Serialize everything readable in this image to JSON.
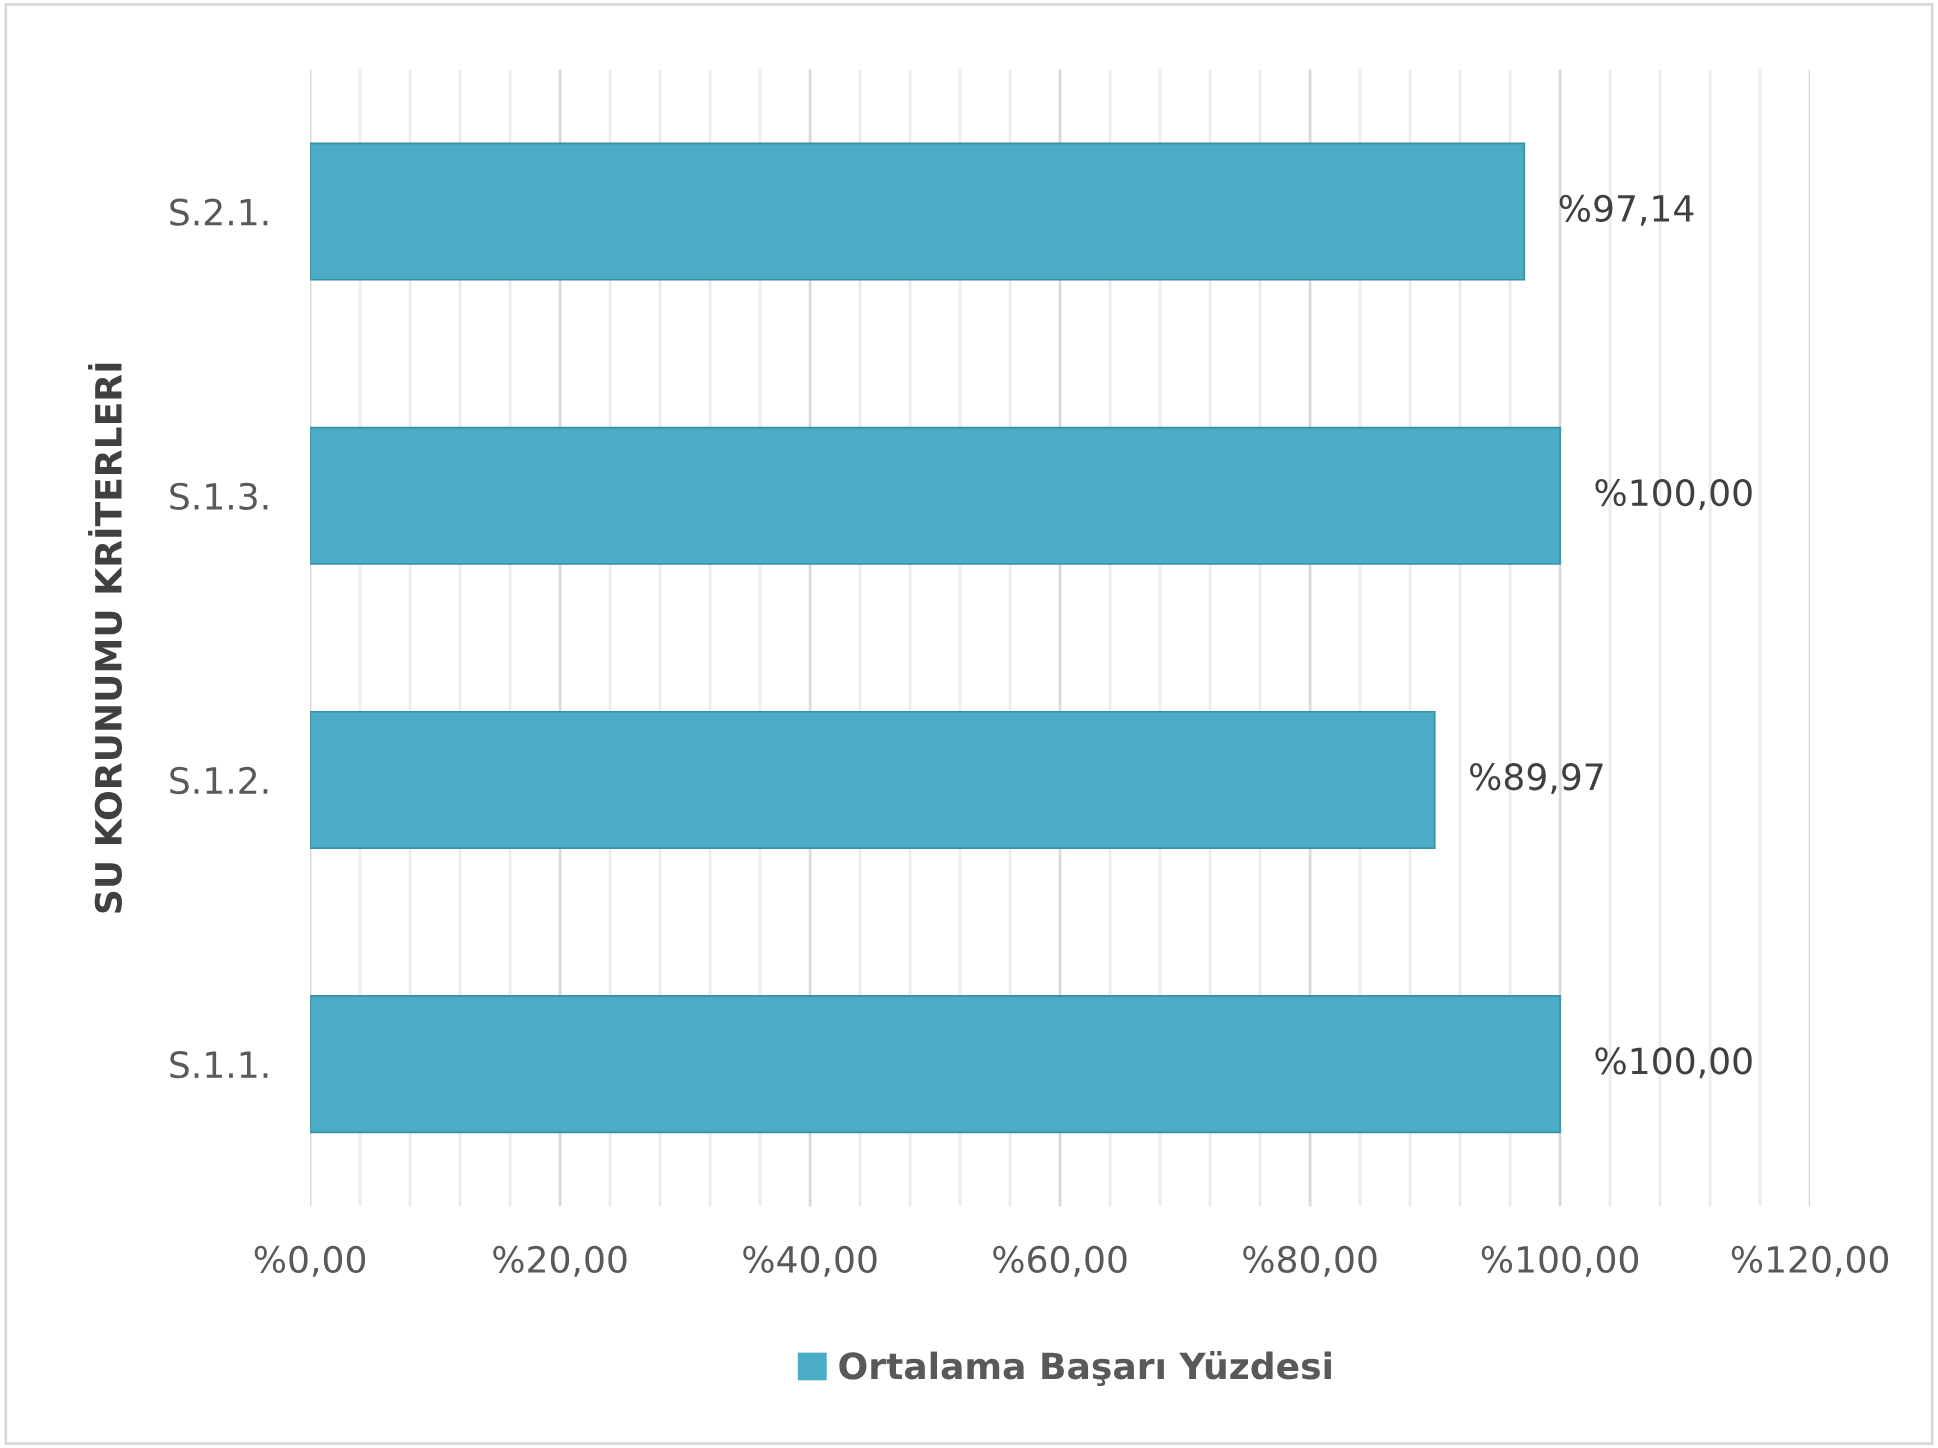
{
  "chart_data": {
    "type": "bar",
    "orientation": "horizontal",
    "ylabel": "SU KORUNUMU KRİTERLERİ",
    "categories": [
      "S.2.1.",
      "S.1.3.",
      "S.1.2.",
      "S.1.1."
    ],
    "series": [
      {
        "name": "Ortalama Başarı Yüzdesi",
        "color": "#4bacc6",
        "values": [
          97.14,
          100,
          89.97,
          100
        ],
        "value_labels": [
          "%97,14",
          "%100,00",
          "%89,97",
          "%100,00"
        ]
      }
    ],
    "xlim": [
      0,
      120
    ],
    "xticks": [
      {
        "value": 0,
        "label": "%0,00"
      },
      {
        "value": 4,
        "label": null
      },
      {
        "value": 8,
        "label": null
      },
      {
        "value": 12,
        "label": null
      },
      {
        "value": 16,
        "label": null
      },
      {
        "value": 20,
        "label": "%20,00"
      },
      {
        "value": 24,
        "label": null
      },
      {
        "value": 28,
        "label": null
      },
      {
        "value": 32,
        "label": null
      },
      {
        "value": 36,
        "label": null
      },
      {
        "value": 40,
        "label": "%40,00"
      },
      {
        "value": 44,
        "label": null
      },
      {
        "value": 48,
        "label": null
      },
      {
        "value": 52,
        "label": null
      },
      {
        "value": 56,
        "label": null
      },
      {
        "value": 60,
        "label": "%60,00"
      },
      {
        "value": 64,
        "label": null
      },
      {
        "value": 68,
        "label": null
      },
      {
        "value": 72,
        "label": null
      },
      {
        "value": 76,
        "label": null
      },
      {
        "value": 80,
        "label": "%80,00"
      },
      {
        "value": 84,
        "label": null
      },
      {
        "value": 88,
        "label": null
      },
      {
        "value": 92,
        "label": null
      },
      {
        "value": 96,
        "label": null
      },
      {
        "value": 100,
        "label": "%100,00"
      },
      {
        "value": 104,
        "label": null
      },
      {
        "value": 108,
        "label": null
      },
      {
        "value": 112,
        "label": null
      },
      {
        "value": 116,
        "label": null
      },
      {
        "value": 120,
        "label": "%120,00"
      }
    ],
    "grid": "x",
    "legend": "bottom"
  }
}
